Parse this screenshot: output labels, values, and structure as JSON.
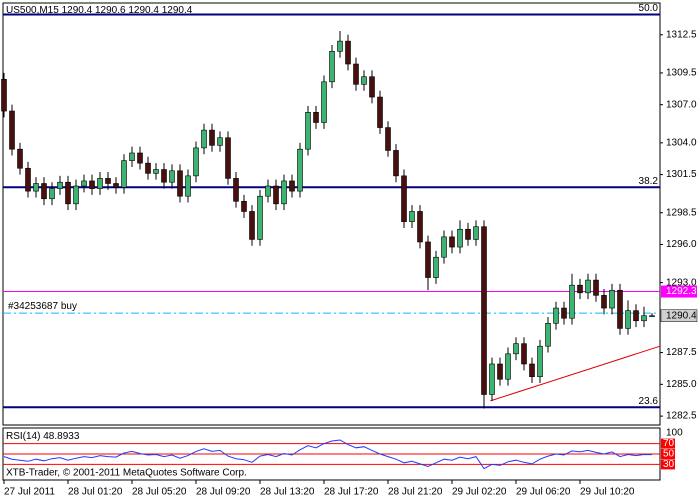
{
  "chart_data": {
    "type": "candlestick",
    "title": "US500,M15",
    "up_color": "#3cb371",
    "down_color": "#4a1010",
    "xlim": [
      -0.125,
      82
    ],
    "xticks": [
      {
        "value": 0,
        "label": "27 Jul 2011"
      },
      {
        "value": 8,
        "label": "28 Jul 01:20"
      },
      {
        "value": 16,
        "label": "28 Jul 05:20"
      },
      {
        "value": 24,
        "label": "28 Jul 09:20"
      },
      {
        "value": 32,
        "label": "28 Jul 13:20"
      },
      {
        "value": 40,
        "label": "28 Jul 17:20"
      },
      {
        "value": 48,
        "label": "28 Jul 21:20"
      },
      {
        "value": 56,
        "label": "29 Jul 02:20"
      },
      {
        "value": 64,
        "label": "29 Jul 06:20"
      },
      {
        "value": 72,
        "label": "29 Jul 10:20"
      }
    ],
    "ylim": [
      1281.8,
      1315.0
    ],
    "yticks": [
      1312.5,
      1309.5,
      {
        "value": 1307,
        "label": "1307.0"
      },
      {
        "value": 1304,
        "label": "1304.0"
      },
      1301.5,
      1298.5,
      {
        "value": 1296,
        "label": "1296.0"
      },
      {
        "value": 1293,
        "label": "1293.0"
      },
      1287.5,
      {
        "value": 1285,
        "label": "1285.0"
      },
      1282.5
    ],
    "open": [
      1309.0,
      1306.5,
      1303.5,
      1302.0,
      1300.2,
      1300.8,
      1299.6,
      1300.4,
      1300.9,
      1299.2,
      1300.6,
      1301.0,
      1300.4,
      1301.2,
      1300.8,
      1300.5,
      1302.6,
      1303.2,
      1302.4,
      1301.6,
      1301.9,
      1300.9,
      1301.8,
      1299.8,
      1301.4,
      1303.6,
      1305.0,
      1303.8,
      1304.4,
      1301.2,
      1299.4,
      1298.6,
      1296.4,
      1299.8,
      1300.6,
      1299.2,
      1301.0,
      1300.2,
      1303.5,
      1306.4,
      1305.6,
      1308.8,
      1311.2,
      1312.0,
      1310.2,
      1308.6,
      1309.2,
      1307.6,
      1305.2,
      1303.4,
      1301.4,
      1297.8,
      1298.6,
      1296.2,
      1293.4,
      1295.0,
      1296.6,
      1295.8,
      1297.2,
      1296.4,
      1297.4,
      1284.2,
      1286.6,
      1285.4,
      1287.4,
      1288.2,
      1286.6,
      1285.6,
      1288.0,
      1289.8,
      1291.0,
      1290.2,
      1292.8,
      1292.2,
      1293.2,
      1292.0,
      1291.0,
      1292.4,
      1289.4,
      1290.8,
      1290.0,
      1290.4
    ],
    "high": [
      1309.5,
      1307.0,
      1304.0,
      1302.5,
      1301.3,
      1301.3,
      1300.9,
      1301.4,
      1301.4,
      1301.1,
      1301.5,
      1301.5,
      1301.7,
      1301.7,
      1301.3,
      1303.1,
      1303.7,
      1303.7,
      1302.9,
      1302.4,
      1302.4,
      1302.3,
      1302.3,
      1301.9,
      1304.1,
      1305.5,
      1305.5,
      1304.9,
      1304.9,
      1301.7,
      1299.9,
      1299.1,
      1300.3,
      1301.1,
      1301.1,
      1301.5,
      1301.5,
      1304.0,
      1306.9,
      1306.9,
      1309.3,
      1311.7,
      1312.8,
      1312.5,
      1310.7,
      1309.7,
      1309.7,
      1308.1,
      1305.7,
      1303.9,
      1301.9,
      1299.1,
      1299.1,
      1296.7,
      1295.5,
      1297.1,
      1297.1,
      1297.9,
      1297.7,
      1297.9,
      1297.9,
      1287.1,
      1287.1,
      1287.9,
      1288.7,
      1288.7,
      1287.1,
      1288.5,
      1290.3,
      1291.5,
      1291.5,
      1293.7,
      1293.3,
      1293.7,
      1293.7,
      1292.5,
      1292.9,
      1292.9,
      1291.6,
      1291.3,
      1291.1,
      1290.6
    ],
    "low": [
      1306.0,
      1303.0,
      1301.5,
      1299.7,
      1299.7,
      1299.1,
      1299.1,
      1299.9,
      1298.7,
      1298.7,
      1300.1,
      1299.9,
      1299.9,
      1300.3,
      1300.0,
      1300.0,
      1302.1,
      1301.9,
      1301.1,
      1301.1,
      1300.4,
      1300.4,
      1299.3,
      1299.3,
      1300.9,
      1303.1,
      1303.3,
      1303.3,
      1300.7,
      1298.9,
      1298.1,
      1295.9,
      1295.9,
      1299.3,
      1298.7,
      1298.7,
      1299.7,
      1299.7,
      1303.0,
      1305.1,
      1305.1,
      1308.3,
      1310.7,
      1309.7,
      1308.1,
      1308.1,
      1307.1,
      1304.7,
      1302.9,
      1300.9,
      1297.3,
      1297.3,
      1295.7,
      1292.4,
      1292.9,
      1294.5,
      1295.3,
      1295.3,
      1295.9,
      1295.9,
      1283.1,
      1283.7,
      1284.9,
      1284.9,
      1286.9,
      1286.1,
      1285.1,
      1285.1,
      1287.5,
      1289.3,
      1289.7,
      1289.7,
      1291.7,
      1291.7,
      1291.5,
      1290.5,
      1290.5,
      1288.9,
      1288.9,
      1289.5,
      1289.5,
      1290.4
    ],
    "close": [
      1306.5,
      1303.5,
      1302.0,
      1300.2,
      1300.8,
      1299.6,
      1300.4,
      1300.9,
      1299.2,
      1300.6,
      1301.0,
      1300.4,
      1301.2,
      1300.8,
      1300.5,
      1302.6,
      1303.2,
      1302.4,
      1301.6,
      1301.9,
      1300.9,
      1301.8,
      1299.8,
      1301.4,
      1303.6,
      1305.0,
      1303.8,
      1304.4,
      1301.2,
      1299.4,
      1298.6,
      1296.4,
      1299.8,
      1300.6,
      1299.2,
      1301.0,
      1300.2,
      1303.5,
      1306.4,
      1305.6,
      1308.8,
      1311.2,
      1312.0,
      1310.2,
      1308.6,
      1309.2,
      1307.6,
      1305.2,
      1303.4,
      1301.4,
      1297.8,
      1298.6,
      1296.2,
      1293.4,
      1295.0,
      1296.6,
      1295.8,
      1297.2,
      1296.4,
      1297.4,
      1284.2,
      1286.6,
      1285.4,
      1287.4,
      1288.2,
      1286.6,
      1285.6,
      1288.0,
      1289.8,
      1291.0,
      1290.2,
      1292.8,
      1292.2,
      1293.2,
      1292.0,
      1291.0,
      1292.4,
      1289.4,
      1290.8,
      1290.0,
      1290.4,
      1290.4
    ],
    "fib_color": "#000080",
    "fib_levels": [
      {
        "level": {
          "value": 50,
          "label": "50.0"
        },
        "price": 1314.1
      },
      {
        "level": 38.2,
        "price": 1300.5
      },
      {
        "level": 23.6,
        "price": 1283.2
      }
    ],
    "price_line": {
      "price": 1292.3,
      "color": "#ff00ff"
    },
    "order_line": {
      "label": "#34253687 buy",
      "price": 1290.6,
      "color": "#00bfff"
    },
    "trend_line": {
      "color": "#e00000",
      "points": [
        [
          60.8,
          1283.7
        ],
        [
          82,
          1288.0
        ]
      ]
    },
    "indicator": {
      "type": "line",
      "label": "RSI(14)",
      "color": "#1e3cff",
      "ylim": [
        0,
        100
      ],
      "yticks": [
        100
      ],
      "levels": [
        70,
        50,
        30
      ],
      "level_color": "#ff0000",
      "values": [
        45,
        40,
        38,
        36,
        40,
        37,
        41,
        43,
        38,
        42,
        45,
        43,
        47,
        45,
        44,
        52,
        55,
        51,
        48,
        49,
        45,
        48,
        42,
        47,
        55,
        60,
        55,
        57,
        46,
        41,
        39,
        34,
        46,
        49,
        45,
        51,
        48,
        58,
        66,
        62,
        70,
        75,
        77,
        68,
        62,
        64,
        57,
        50,
        45,
        40,
        33,
        36,
        31,
        26,
        33,
        40,
        38,
        44,
        41,
        45,
        22,
        30,
        28,
        35,
        38,
        34,
        31,
        40,
        46,
        50,
        48,
        56,
        54,
        57,
        53,
        50,
        54,
        45,
        49,
        47,
        49,
        48.8933
      ]
    },
    "copyright": "XTB-Trader, © 2001-2011 MetaQuotes Software Corp."
  }
}
